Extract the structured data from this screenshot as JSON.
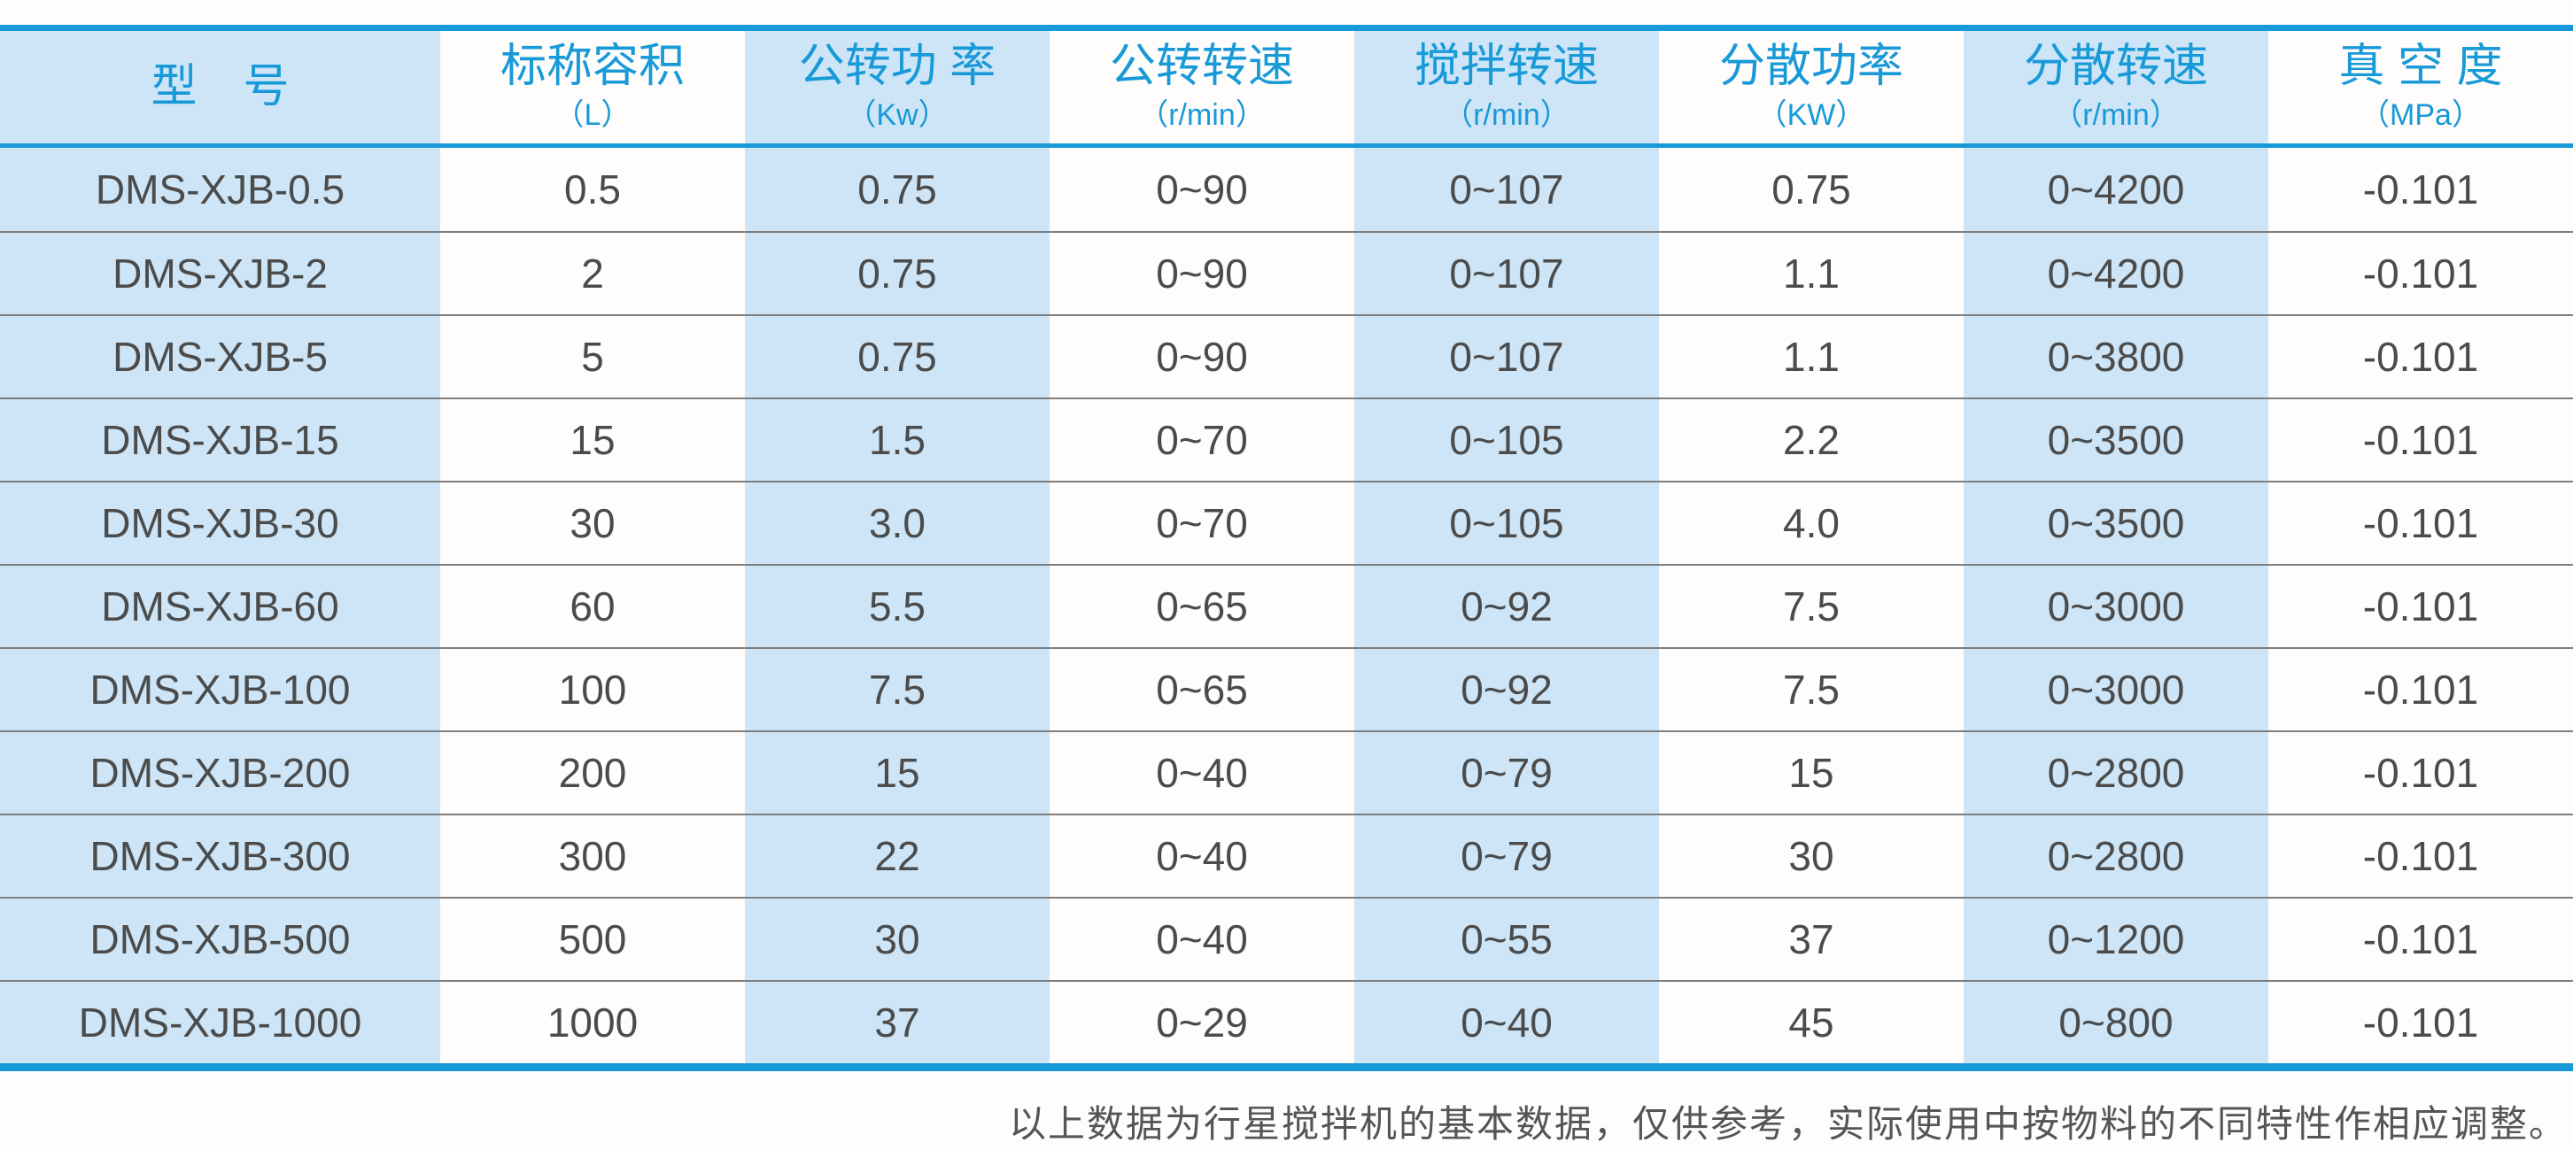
{
  "colors": {
    "accent_blue": "#1899D8",
    "light_blue": "#CDE5F6",
    "row_line": "#7E7E7E",
    "cell_text": "#4B4B4B",
    "note_text": "#555555"
  },
  "chart_data": {
    "type": "table",
    "columns": [
      {
        "title": "型　号",
        "unit": ""
      },
      {
        "title": "标称容积",
        "unit": "（L）"
      },
      {
        "title": "公转功 率",
        "unit": "（Kw）"
      },
      {
        "title": "公转转速",
        "unit": "（r/min）"
      },
      {
        "title": "搅拌转速",
        "unit": "（r/min）"
      },
      {
        "title": "分散功率",
        "unit": "（KW）"
      },
      {
        "title": "分散转速",
        "unit": "（r/min）"
      },
      {
        "title": "真 空 度",
        "unit": "（MPa）"
      }
    ],
    "rows": [
      [
        "DMS-XJB-0.5",
        "0.5",
        "0.75",
        "0~90",
        "0~107",
        "0.75",
        "0~4200",
        "-0.101"
      ],
      [
        "DMS-XJB-2",
        "2",
        "0.75",
        "0~90",
        "0~107",
        "1.1",
        "0~4200",
        "-0.101"
      ],
      [
        "DMS-XJB-5",
        "5",
        "0.75",
        "0~90",
        "0~107",
        "1.1",
        "0~3800",
        "-0.101"
      ],
      [
        "DMS-XJB-15",
        "15",
        "1.5",
        "0~70",
        "0~105",
        "2.2",
        "0~3500",
        "-0.101"
      ],
      [
        "DMS-XJB-30",
        "30",
        "3.0",
        "0~70",
        "0~105",
        "4.0",
        "0~3500",
        "-0.101"
      ],
      [
        "DMS-XJB-60",
        "60",
        "5.5",
        "0~65",
        "0~92",
        "7.5",
        "0~3000",
        "-0.101"
      ],
      [
        "DMS-XJB-100",
        "100",
        "7.5",
        "0~65",
        "0~92",
        "7.5",
        "0~3000",
        "-0.101"
      ],
      [
        "DMS-XJB-200",
        "200",
        "15",
        "0~40",
        "0~79",
        "15",
        "0~2800",
        "-0.101"
      ],
      [
        "DMS-XJB-300",
        "300",
        "22",
        "0~40",
        "0~79",
        "30",
        "0~2800",
        "-0.101"
      ],
      [
        "DMS-XJB-500",
        "500",
        "30",
        "0~40",
        "0~55",
        "37",
        "0~1200",
        "-0.101"
      ],
      [
        "DMS-XJB-1000",
        "1000",
        "37",
        "0~29",
        "0~40",
        "45",
        "0~800",
        "-0.101"
      ]
    ],
    "footnote": "以上数据为行星搅拌机的基本数据，仅供参考，实际使用中按物料的不同特性作相应调整。"
  }
}
